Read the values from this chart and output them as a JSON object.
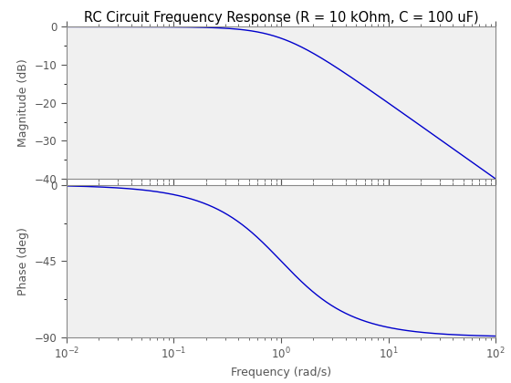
{
  "title": "RC Circuit Frequency Response (R = 10 kOhm, C = 100 uF)",
  "xlabel": "Frequency (rad/s)",
  "ylabel_mag": "Magnitude (dB)",
  "ylabel_phase": "Phase (deg)",
  "R": 10000,
  "C": 0.0001,
  "freq_min": 0.01,
  "freq_max": 100,
  "mag_ylim": [
    -40,
    0
  ],
  "mag_yticks": [
    -40,
    -30,
    -20,
    -10,
    0
  ],
  "phase_ylim": [
    -90,
    0
  ],
  "phase_yticks": [
    -90,
    -45,
    0
  ],
  "line_color": "#0000CC",
  "line_width": 1.0,
  "background_color": "#ffffff",
  "axes_facecolor": "#f0f0f0",
  "title_fontsize": 10.5,
  "label_fontsize": 9,
  "tick_fontsize": 8.5,
  "tick_color": "#555555",
  "spine_color": "#888888"
}
